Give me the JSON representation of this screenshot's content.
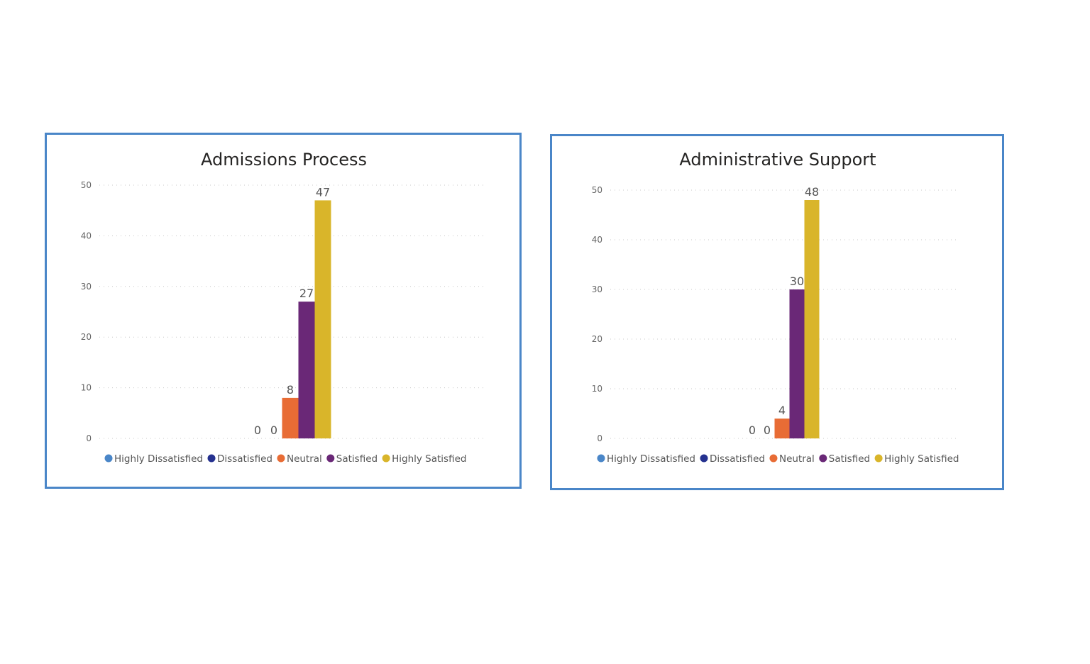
{
  "chart_data": [
    {
      "type": "bar",
      "title": "Admissions Process",
      "categories": [
        "Highly Dissatisfied",
        "Dissatisfied",
        "Neutral",
        "Satisfied",
        "Highly Satisfied"
      ],
      "values": [
        0,
        0,
        8,
        27,
        47
      ],
      "ylim": [
        0,
        50
      ],
      "yticks": [
        0,
        10,
        20,
        30,
        40,
        50
      ],
      "grid": true,
      "legend": "bottom",
      "data_labels": true
    },
    {
      "type": "bar",
      "title": "Administrative Support",
      "categories": [
        "Highly Dissatisfied",
        "Dissatisfied",
        "Neutral",
        "Satisfied",
        "Highly Satisfied"
      ],
      "values": [
        0,
        0,
        4,
        30,
        48
      ],
      "ylim": [
        0,
        50
      ],
      "yticks": [
        0,
        10,
        20,
        30,
        40,
        50
      ],
      "grid": true,
      "legend": "bottom",
      "data_labels": true
    }
  ],
  "colors": {
    "Highly Dissatisfied": "#4a86c8",
    "Dissatisfied": "#25318f",
    "Neutral": "#e86c35",
    "Satisfied": "#6a2877",
    "Highly Satisfied": "#d9b52a",
    "panel_border": "#4a86c8"
  }
}
